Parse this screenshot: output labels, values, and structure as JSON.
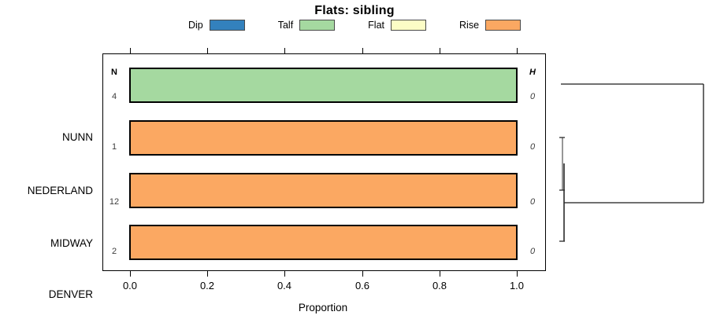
{
  "title": "Flats: sibling",
  "legend": {
    "items": [
      {
        "label": "Dip",
        "color": "#3381BD"
      },
      {
        "label": "Talf",
        "color": "#A5D9A0"
      },
      {
        "label": "Flat",
        "color": "#FCFDC6"
      },
      {
        "label": "Rise",
        "color": "#FBA862"
      }
    ]
  },
  "axes": {
    "xlabel": "Proportion",
    "x_ticks": [
      "0.0",
      "0.2",
      "0.4",
      "0.6",
      "0.8",
      "1.0"
    ]
  },
  "columns": {
    "n_header": "N",
    "h_header": "H",
    "n_values": [
      4,
      1,
      12,
      2
    ],
    "h_values": [
      0,
      0,
      0,
      0
    ]
  },
  "chart_data": {
    "type": "bar",
    "orientation": "horizontal",
    "stacked": true,
    "title": "Flats: sibling",
    "xlabel": "Proportion",
    "xlim": [
      0.0,
      1.0
    ],
    "x_ticks": [
      0.0,
      0.2,
      0.4,
      0.6,
      0.8,
      1.0
    ],
    "categories": [
      "NUNN",
      "NEDERLAND",
      "MIDWAY",
      "DENVER"
    ],
    "series": [
      {
        "name": "Dip",
        "color": "#3381BD",
        "values": [
          0,
          0,
          0,
          0
        ]
      },
      {
        "name": "Talf",
        "color": "#A5D9A0",
        "values": [
          1.0,
          0,
          0,
          0
        ]
      },
      {
        "name": "Flat",
        "color": "#FCFDC6",
        "values": [
          0,
          0,
          0,
          0
        ]
      },
      {
        "name": "Rise",
        "color": "#FBA862",
        "values": [
          0,
          1.0,
          1.0,
          1.0
        ]
      }
    ],
    "row_counts_N": [
      4,
      1,
      12,
      2
    ],
    "row_heights_H": [
      0,
      0,
      0,
      0
    ],
    "legend_position": "top",
    "grid": false,
    "dendrogram": {
      "position": "right",
      "leaves": [
        "NUNN",
        "NEDERLAND",
        "MIDWAY",
        "DENVER"
      ],
      "merges": [
        {
          "members": [
            "NEDERLAND",
            "MIDWAY"
          ],
          "height": 0
        },
        {
          "members": [
            "NEDERLAND+MIDWAY",
            "DENVER"
          ],
          "height": 0
        },
        {
          "members": [
            "NEDERLAND+MIDWAY+DENVER",
            "NUNN"
          ],
          "height": 1
        }
      ]
    }
  }
}
